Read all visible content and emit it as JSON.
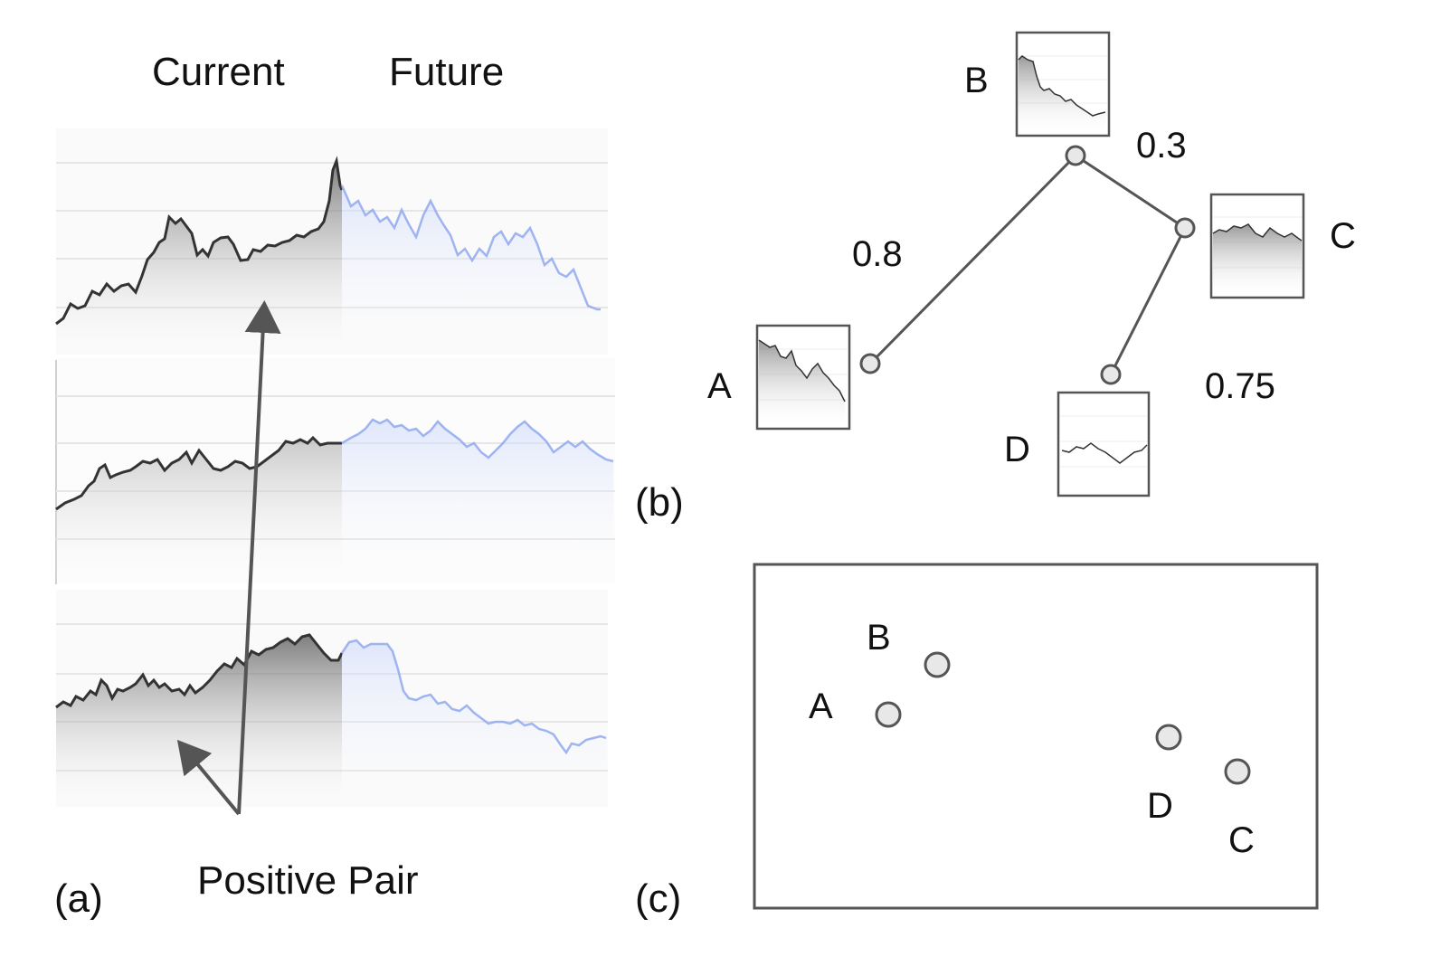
{
  "panel_a": {
    "header_current": "Current",
    "header_future": "Future",
    "caption": "(a)",
    "annotation": "Positive Pair",
    "colors": {
      "current_line": "#333333",
      "future_line": "#8fa8ee",
      "arrow": "#555555"
    }
  },
  "panel_b": {
    "caption": "(b)",
    "nodes": {
      "a": "A",
      "b": "B",
      "c": "C",
      "d": "D"
    },
    "edge_weights": {
      "ba": "0.8",
      "bc": "0.3",
      "cd": "0.75"
    }
  },
  "panel_c": {
    "caption": "(c)",
    "points": {
      "a": "A",
      "b": "B",
      "c": "C",
      "d": "D"
    }
  }
}
